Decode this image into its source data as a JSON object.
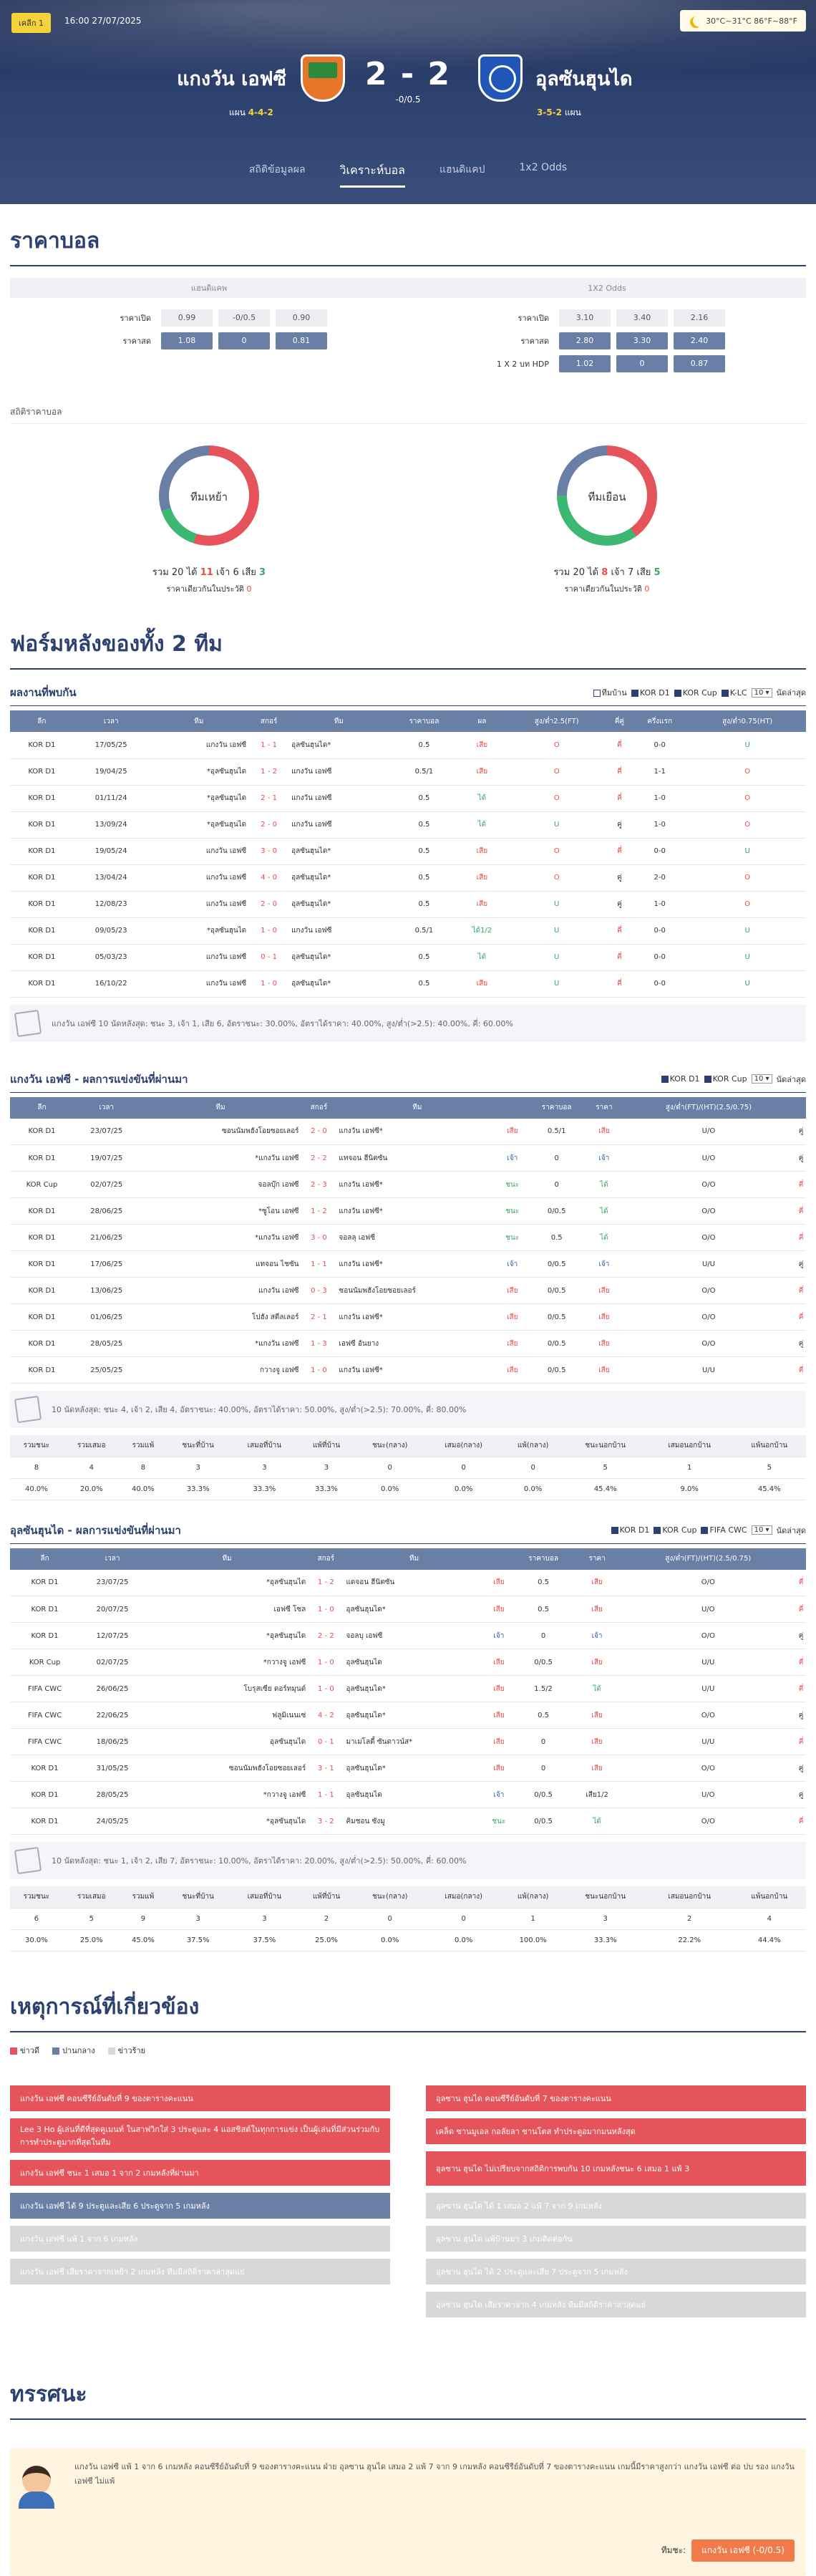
{
  "header": {
    "league": "เคลีก 1",
    "datetime": "16:00 27/07/2025",
    "weather": "30°C~31°C 86°F~88°F",
    "home": "แกงวัน เอฟซี",
    "away": "อุลซันฮุนได",
    "score": "2 - 2",
    "hdp": "-0/0.5",
    "home_form_label": "แผน",
    "home_form": "4-4-2",
    "away_form": "3-5-2",
    "away_form_label": "แผน"
  },
  "tabs": [
    "สถิติข้อมูลผล",
    "วิเคราะห์บอล",
    "แฮนดิแคป",
    "1x2 Odds"
  ],
  "odds": {
    "title": "ราคาบอล",
    "left_head": "แฮนดิแคพ",
    "right_head": "1X2 Odds",
    "left_rows": [
      {
        "label": "ราคาเปิด",
        "v": [
          "0.99",
          "-0/0.5",
          "0.90"
        ]
      },
      {
        "label": "ราคาสด",
        "v": [
          "1.08",
          "0",
          "0.81"
        ]
      }
    ],
    "right_rows": [
      {
        "label": "ราคาเปิด",
        "v": [
          "3.10",
          "3.40",
          "2.16"
        ]
      },
      {
        "label": "ราคาสด",
        "v": [
          "2.80",
          "3.30",
          "2.40"
        ]
      },
      {
        "label": "1 X 2 บท HDP",
        "v": [
          "1.02",
          "0",
          "0.87"
        ]
      }
    ],
    "stats_title": "สถิติราคาบอล",
    "home_pie": {
      "label": "ทีมเหย้า",
      "total": "20",
      "win": "11",
      "draw": "6",
      "lose": "3",
      "note": "ราคาเดียวกันในประวัติ",
      "note_val": "0"
    },
    "away_pie": {
      "label": "ทีมเยือน",
      "total": "20",
      "win": "8",
      "draw": "7",
      "lose": "5",
      "note": "ราคาเดียวกันในประวัติ",
      "note_val": "0"
    },
    "t_total": "รวม",
    "t_win": "ได้",
    "t_draw": "เจ้า",
    "t_lose": "เสีย"
  },
  "form_title": "ฟอร์มหลังของทั้ง 2 ทีม",
  "h2h": {
    "title": "ผลงานที่พบกัน",
    "filters": [
      "ทีมบ้าน",
      "KOR D1",
      "KOR Cup",
      "K-LC"
    ],
    "count": "10",
    "count_label": "นัดล่าสุด",
    "headers": [
      "ลีก",
      "เวลา",
      "ทีม",
      "สกอร์",
      "ทีม",
      "ราคาบอล",
      "ผล",
      "สูง/ต่ำ2.5(FT)",
      "คี่คู่",
      "ครึ่งแรก",
      "สูง/ต่ำ0.75(HT)"
    ],
    "rows": [
      [
        "KOR D1",
        "17/05/25",
        "แกงวัน เอฟซี",
        "1 - 1",
        "อุลซันฮุนได*",
        "0.5",
        "เสีย",
        "O",
        "คี่",
        "0-0",
        "U"
      ],
      [
        "KOR D1",
        "19/04/25",
        "*อุลซันฮุนได",
        "1 - 2",
        "แกงวัน เอฟซี",
        "0.5/1",
        "เสีย",
        "O",
        "คี่",
        "1-1",
        "O"
      ],
      [
        "KOR D1",
        "01/11/24",
        "*อุลซันฮุนได",
        "2 - 1",
        "แกงวัน เอฟซี",
        "0.5",
        "ได้",
        "O",
        "คี่",
        "1-0",
        "O"
      ],
      [
        "KOR D1",
        "13/09/24",
        "*อุลซันฮุนได",
        "2 - 0",
        "แกงวัน เอฟซี",
        "0.5",
        "ได้",
        "U",
        "คู่",
        "1-0",
        "O"
      ],
      [
        "KOR D1",
        "19/05/24",
        "แกงวัน เอฟซี",
        "3 - 0",
        "อุลซันฮุนได*",
        "0.5",
        "เสีย",
        "O",
        "คี่",
        "0-0",
        "U"
      ],
      [
        "KOR D1",
        "13/04/24",
        "แกงวัน เอฟซี",
        "4 - 0",
        "อุลซันฮุนได*",
        "0.5",
        "เสีย",
        "O",
        "คู่",
        "2-0",
        "O"
      ],
      [
        "KOR D1",
        "12/08/23",
        "แกงวัน เอฟซี",
        "2 - 0",
        "อุลซันฮุนได*",
        "0.5",
        "เสีย",
        "U",
        "คู่",
        "1-0",
        "O"
      ],
      [
        "KOR D1",
        "09/05/23",
        "*อุลซันฮุนได",
        "1 - 0",
        "แกงวัน เอฟซี",
        "0.5/1",
        "ได้1/2",
        "U",
        "คี่",
        "0-0",
        "U"
      ],
      [
        "KOR D1",
        "05/03/23",
        "แกงวัน เอฟซี",
        "0 - 1",
        "อุลซันฮุนได*",
        "0.5",
        "ได้",
        "U",
        "คี่",
        "0-0",
        "U"
      ],
      [
        "KOR D1",
        "16/10/22",
        "แกงวัน เอฟซี",
        "1 - 0",
        "อุลซันฮุนได*",
        "0.5",
        "เสีย",
        "U",
        "คี่",
        "0-0",
        "U"
      ]
    ],
    "summary": "แกงวัน เอฟซี 10 นัดหลังสุด: ชนะ 3, เจ้า 1, เสีย 6, อัตราชนะ: 30.00%, อัตราได้ราคา: 40.00%, สูง/ต่ำ(>2.5): 40.00%, คี่: 60.00%"
  },
  "home_recent": {
    "title": "แกงวัน เอฟซี - ผลการแข่งขันที่ผ่านมา",
    "filters": [
      "KOR D1",
      "KOR Cup"
    ],
    "count": "10",
    "count_label": "นัดล่าสุด",
    "headers": [
      "ลีก",
      "เวลา",
      "ทีม",
      "สกอร์",
      "ทีม",
      "",
      "ราคาบอล",
      "ราคา",
      "สูง/ต่ำ(FT)/(HT)(2.5/0.75)",
      ""
    ],
    "rows": [
      [
        "KOR D1",
        "23/07/25",
        "ซอนนัมพฮังโอยซอยเลอร์",
        "2 - 0",
        "แกงวัน เอฟซี*",
        "เสีย",
        "0.5/1",
        "เสีย",
        "U/O",
        "คู่"
      ],
      [
        "KOR D1",
        "19/07/25",
        "*แกงวัน เอฟซี",
        "2 - 2",
        "แทจอน ฮีนิตซัน",
        "เจ้า",
        "0",
        "เจ้า",
        "U/O",
        "คู่"
      ],
      [
        "KOR Cup",
        "02/07/25",
        "จอลบุ๊ก เอฟซี",
        "2 - 3",
        "แกงวัน เอฟซี*",
        "ชนะ",
        "0",
        "ได้",
        "O/O",
        "คี่"
      ],
      [
        "KOR D1",
        "28/06/25",
        "*ซูโอน เอฟซี",
        "1 - 2",
        "แกงวัน เอฟซี*",
        "ชนะ",
        "0/0.5",
        "ได้",
        "O/O",
        "คี่"
      ],
      [
        "KOR D1",
        "21/06/25",
        "*แกงวัน เอฟซี",
        "3 - 0",
        "จอลลุ เอฟซี",
        "ชนะ",
        "0.5",
        "ได้",
        "O/O",
        "คี่"
      ],
      [
        "KOR D1",
        "17/06/25",
        "แทจอน ไชซัน",
        "1 - 1",
        "แกงวัน เอฟซี*",
        "เจ้า",
        "0/0.5",
        "เจ้า",
        "U/U",
        "คู่"
      ],
      [
        "KOR D1",
        "13/06/25",
        "แกงวัน เอฟซี",
        "0 - 3",
        "ซอนนัมพฮังโอยซอยเลอร์",
        "เสีย",
        "0/0.5",
        "เสีย",
        "O/O",
        "คี่"
      ],
      [
        "KOR D1",
        "01/06/25",
        "โปฮัง สตีลเลอร์",
        "2 - 1",
        "แกงวัน เอฟซี*",
        "เสีย",
        "0/0.5",
        "เสีย",
        "O/O",
        "คี่"
      ],
      [
        "KOR D1",
        "28/05/25",
        "*แกงวัน เอฟซี",
        "1 - 3",
        "เอฟซี อันยาง",
        "เสีย",
        "0/0.5",
        "เสีย",
        "O/O",
        "คู่"
      ],
      [
        "KOR D1",
        "25/05/25",
        "กวางจู เอฟซี",
        "1 - 0",
        "แกงวัน เอฟซี*",
        "เสีย",
        "0/0.5",
        "เสีย",
        "U/U",
        "คี่"
      ]
    ],
    "summary": "10 นัดหลังสุด: ชนะ 4, เจ้า 2, เสีย 4, อัตราชนะ: 40.00%, อัตราได้ราคา: 50.00%, สูง/ต่ำ(>2.5): 70.00%, คี่: 80.00%",
    "stat_headers": [
      "รวมชนะ",
      "รวมเสมอ",
      "รวมแพ้",
      "ชนะที่บ้าน",
      "เสมอที่บ้าน",
      "แพ้ที่บ้าน",
      "ชนะ(กลาง)",
      "เสมอ(กลาง)",
      "แพ้(กลาง)",
      "ชนะนอกบ้าน",
      "เสมอนอกบ้าน",
      "แพ้นอกบ้าน"
    ],
    "stat_counts": [
      "8",
      "4",
      "8",
      "3",
      "3",
      "3",
      "0",
      "0",
      "0",
      "5",
      "1",
      "5"
    ],
    "stat_pcts": [
      "40.0%",
      "20.0%",
      "40.0%",
      "33.3%",
      "33.3%",
      "33.3%",
      "0.0%",
      "0.0%",
      "0.0%",
      "45.4%",
      "9.0%",
      "45.4%"
    ]
  },
  "away_recent": {
    "title": "อุลซันฮุนได - ผลการแข่งขันที่ผ่านมา",
    "filters": [
      "KOR D1",
      "KOR Cup",
      "FIFA CWC"
    ],
    "count": "10",
    "count_label": "นัดล่าสุด",
    "headers": [
      "ลีก",
      "เวลา",
      "ทีม",
      "สกอร์",
      "ทีม",
      "",
      "ราคาบอล",
      "ราคา",
      "สูง/ต่ำ(FT)/(HT)(2.5/0.75)",
      ""
    ],
    "rows": [
      [
        "KOR D1",
        "23/07/25",
        "*อุลซันฮุนได",
        "1 - 2",
        "แดจอน ฮีนิตซัน",
        "เสีย",
        "0.5",
        "เสีย",
        "O/O",
        "คี่"
      ],
      [
        "KOR D1",
        "20/07/25",
        "เอฟซี โซล",
        "1 - 0",
        "อุลซันฮุนได*",
        "เสีย",
        "0.5",
        "เสีย",
        "U/O",
        "คี่"
      ],
      [
        "KOR D1",
        "12/07/25",
        "*อุลซันฮุนได",
        "2 - 2",
        "จอลบุ เอฟซี",
        "เจ้า",
        "0",
        "เจ้า",
        "O/O",
        "คู่"
      ],
      [
        "KOR Cup",
        "02/07/25",
        "*กวางจู เอฟซี",
        "1 - 0",
        "อุลซันฮุนได",
        "เสีย",
        "0/0.5",
        "เสีย",
        "U/U",
        "คี่"
      ],
      [
        "FIFA CWC",
        "26/06/25",
        "โบรุสเซีย ดอร์ทมุนด์",
        "1 - 0",
        "อุลซันฮุนได*",
        "เสีย",
        "1.5/2",
        "ได้",
        "U/U",
        "คี่"
      ],
      [
        "FIFA CWC",
        "22/06/25",
        "ฟลูมิเนนเซ่",
        "4 - 2",
        "อุลซันฮุนได*",
        "เสีย",
        "0.5",
        "เสีย",
        "O/O",
        "คู่"
      ],
      [
        "FIFA CWC",
        "18/06/25",
        "อุลซันฮุนได",
        "0 - 1",
        "มาเมโลดี้ ซันดาวน์ส*",
        "เสีย",
        "0",
        "เสีย",
        "U/U",
        "คี่"
      ],
      [
        "KOR D1",
        "31/05/25",
        "ซอนนัมพฮังโอยซอยเลอร์",
        "3 - 1",
        "อุลซันฮุนได*",
        "เสีย",
        "0",
        "เสีย",
        "O/O",
        "คู่"
      ],
      [
        "KOR D1",
        "28/05/25",
        "*กวางจู เอฟซี",
        "1 - 1",
        "อุลซันฮุนได",
        "เจ้า",
        "0/0.5",
        "เสีย1/2",
        "U/O",
        "คู่"
      ],
      [
        "KOR D1",
        "24/05/25",
        "*อุลซันฮุนได",
        "3 - 2",
        "คิมชอน ซังมู",
        "ชนะ",
        "0/0.5",
        "ได้",
        "O/O",
        "คี่"
      ]
    ],
    "summary": "10 นัดหลังสุด: ชนะ 1, เจ้า 2, เสีย 7, อัตราชนะ: 10.00%, อัตราได้ราคา: 20.00%, สูง/ต่ำ(>2.5): 50.00%, คี่: 60.00%",
    "stat_headers": [
      "รวมชนะ",
      "รวมเสมอ",
      "รวมแพ้",
      "ชนะที่บ้าน",
      "เสมอที่บ้าน",
      "แพ้ที่บ้าน",
      "ชนะ(กลาง)",
      "เสมอ(กลาง)",
      "แพ้(กลาง)",
      "ชนะนอกบ้าน",
      "เสมอนอกบ้าน",
      "แพ้นอกบ้าน"
    ],
    "stat_counts": [
      "6",
      "5",
      "9",
      "3",
      "3",
      "2",
      "0",
      "0",
      "1",
      "3",
      "2",
      "4"
    ],
    "stat_pcts": [
      "30.0%",
      "25.0%",
      "45.0%",
      "37.5%",
      "37.5%",
      "25.0%",
      "0.0%",
      "0.0%",
      "100.0%",
      "33.3%",
      "22.2%",
      "44.4%"
    ]
  },
  "events": {
    "title": "เหตุการณ์ที่เกี่ยวข้อง",
    "legend": [
      "ข่าวดี",
      "ปานกลาง",
      "ข่าวร้าย"
    ],
    "left": [
      {
        "c": "r",
        "t": "แกงวัน เอฟซี คอนซีรีย์อันดับที่ 9 ของตารางคะแนน"
      },
      {
        "c": "r",
        "t": "Lee 3 Ho ผู้เล่นที่ดีที่สุดคูเมนท์ ในสาฟวิกใส่ 3 ประตูและ 4 แอสซิสต์ในทุกการแข่ง เป็นผู้เล่นที่มีส่วนร่วมกับการทำประตูมากที่สุดในทีม",
        "tall": true
      },
      {
        "c": "r",
        "t": "แกงวัน เอฟซี ชนะ 1 เสมอ 1 จาก 2 เกมหลังที่ผ่านมา"
      },
      {
        "c": "b",
        "t": "แกงวัน เอฟซี ได้ 9 ประตูและเสีย 6 ประตูจาก 5 เกมหลัง"
      },
      {
        "c": "g",
        "t": "แกงวัน เอฟซี แพ้ 1 จาก 6 เกมหลัง"
      },
      {
        "c": "g",
        "t": "แกงวัน เอฟซี เสียราคาจากเหย้า 2 เกมหลัง ทีมมีสถิติราคาล่าสุดแย่"
      }
    ],
    "right": [
      {
        "c": "r",
        "t": "อุลซาน ฮุนได คอนซีรีย์อันดับที่ 7 ของตารางคะแนน"
      },
      {
        "c": "r",
        "t": "เคล็ด ซานมูเอล กอลัยลา ซานโตส ทำประตูอมากมนหลังสุด"
      },
      {
        "c": "r",
        "t": "อุลซาน ฮุนได ไม่เปรียบจากสถิติการพบกัน 10 เกมหลังชนะ 6 เสมอ 1 แพ้ 3",
        "tall": true
      },
      {
        "c": "g",
        "t": "อุลซาน ฮุนได ได้ 1 เสมอ 2 แพ้ 7 จาก 9 เกมหลัง"
      },
      {
        "c": "g",
        "t": "อุลซาน ฮุนได แพ้บ้านมา 3 เกมติดต่อกัน"
      },
      {
        "c": "g",
        "t": "อุลซาน ฮุนได ได้ 2 ประตูและเสีย 7 ประตูจาก 5 เกมหลัง"
      },
      {
        "c": "g",
        "t": "อุลซาน ฮุนได เสียราคาจาก 4 เกมหลัง ทีมมีสถิติราคาล่าสุดแย่"
      }
    ]
  },
  "view": {
    "title": "ทรรศนะ",
    "text": "แกงวัน เอฟซี แพ้ 1 จาก 6 เกมหลัง คอนซีรีย์อันดับที่ 9 ของตารางคะแนน ฝ่าย อุลซาน ฮุนได เสมอ 2 แพ้ 7 จาก 9 เกมหลัง คอนซีรีย์อันดับที่ 7 ของตารางคะแนน เกมนี้มีราคาสูงกว่า แกงวัน เอฟซี ต่อ ปบ รอง แกงวัน เอฟซี ไม่แพ้",
    "pick_label": "ทีมชะ:",
    "pick": "แกงวัน เอฟซี  (-0/0.5)"
  }
}
